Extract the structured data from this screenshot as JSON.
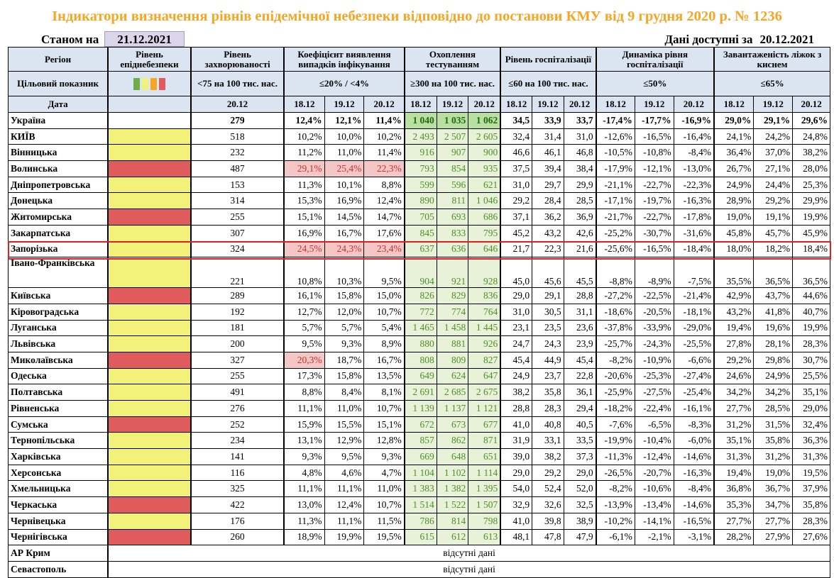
{
  "title": "Індикатори визначення рівнів епідемічної небезпеки відповідно до постанови КМУ від 9 грудня 2020 р. № 1236",
  "state_label": "Станом на",
  "state_date": "21.12.2021",
  "avail_label": "Дані доступні за",
  "avail_date": "20.12.2021",
  "colors": {
    "yellow": "#f2f27a",
    "red": "#e05c5c",
    "title": "#f5a623",
    "highlight": "#e02020"
  },
  "legend_colors": [
    "#70ad47",
    "#f2f27a",
    "#f5a623",
    "#e05c5c"
  ],
  "headers": {
    "region": "Регіон",
    "epidemic_level": "Рівень епіднебезпеки",
    "incidence": "Рівень захворюваності",
    "detection": "Коефіцієнт виявлення випадків інфікування",
    "testing": "Охоплення тестуванням",
    "hospitalization": "Рівень госпіталізації",
    "hosp_dynamics": "Динаміка рівня госпіталізації",
    "oxygen_beds": "Завантаженість ліжок з киснем"
  },
  "targets": {
    "label": "Цільовий показник",
    "incidence": "<75 на 100 тис. нас.",
    "detection": "≤20% / <4%",
    "testing": "≥300 на 100 тис. нас.",
    "hospitalization": "≤60 на 100 тис. нас.",
    "hosp_dynamics": "≤50%",
    "oxygen_beds": "≤65%"
  },
  "date_row": {
    "label": "Дата",
    "incidence": "20.12",
    "dates": [
      "18.12",
      "19.12",
      "20.12"
    ]
  },
  "rows": [
    {
      "region": "Україна",
      "level": "",
      "incidence": "279",
      "detection": [
        "12,4%",
        "12,1%",
        "11,4%"
      ],
      "testing": [
        "1 040",
        "1 035",
        "1 062"
      ],
      "hosp": [
        "34,5",
        "33,9",
        "33,7"
      ],
      "dyn": [
        "-17,4%",
        "-17,7%",
        "-16,9%"
      ],
      "beds": [
        "29,0%",
        "29,1%",
        "29,6%"
      ]
    },
    {
      "region": "КИЇВ",
      "level": "yellow",
      "incidence": "518",
      "detection": [
        "10,2%",
        "10,0%",
        "10,2%"
      ],
      "testing": [
        "2 493",
        "2 507",
        "2 605"
      ],
      "hosp": [
        "32,4",
        "31,4",
        "31,0"
      ],
      "dyn": [
        "-12,6%",
        "-16,5%",
        "-16,4%"
      ],
      "beds": [
        "24,1%",
        "24,2%",
        "24,8%"
      ]
    },
    {
      "region": "Вінницька",
      "level": "yellow",
      "incidence": "232",
      "detection": [
        "11,2%",
        "11,0%",
        "11,4%"
      ],
      "testing": [
        "916",
        "907",
        "900"
      ],
      "hosp": [
        "46,6",
        "46,1",
        "46,8"
      ],
      "dyn": [
        "-10,5%",
        "-10,8%",
        "-8,4%"
      ],
      "beds": [
        "36,4%",
        "37,0%",
        "38,2%"
      ]
    },
    {
      "region": "Волинська",
      "level": "red",
      "incidence": "487",
      "detection": [
        "29,1%",
        "25,4%",
        "22,3%"
      ],
      "pink": [
        true,
        true,
        true
      ],
      "testing": [
        "793",
        "854",
        "935"
      ],
      "hosp": [
        "37,5",
        "39,4",
        "38,4"
      ],
      "dyn": [
        "-17,9%",
        "-12,1%",
        "-13,0%"
      ],
      "beds": [
        "26,7%",
        "27,1%",
        "28,0%"
      ]
    },
    {
      "region": "Дніпропетровська",
      "level": "yellow",
      "incidence": "153",
      "detection": [
        "11,3%",
        "10,1%",
        "8,8%"
      ],
      "testing": [
        "599",
        "596",
        "621"
      ],
      "hosp": [
        "31,0",
        "29,7",
        "29,9"
      ],
      "dyn": [
        "-21,1%",
        "-22,7%",
        "-22,3%"
      ],
      "beds": [
        "24,9%",
        "24,4%",
        "25,3%"
      ]
    },
    {
      "region": "Донецька",
      "level": "yellow",
      "incidence": "314",
      "detection": [
        "15,3%",
        "16,9%",
        "12,4%"
      ],
      "testing": [
        "890",
        "811",
        "1 046"
      ],
      "hosp": [
        "29,2",
        "28,4",
        "28,5"
      ],
      "dyn": [
        "-17,1%",
        "-19,7%",
        "-16,3%"
      ],
      "beds": [
        "28,9%",
        "29,2%",
        "29,9%"
      ]
    },
    {
      "region": "Житомирська",
      "level": "red",
      "incidence": "255",
      "detection": [
        "15,1%",
        "14,5%",
        "14,7%"
      ],
      "testing": [
        "705",
        "693",
        "686"
      ],
      "hosp": [
        "37,1",
        "36,2",
        "36,9"
      ],
      "dyn": [
        "-21,7%",
        "-22,7%",
        "-17,8%"
      ],
      "beds": [
        "19,0%",
        "19,1%",
        "19,9%"
      ]
    },
    {
      "region": "Закарпатська",
      "level": "yellow",
      "incidence": "307",
      "detection": [
        "16,9%",
        "16,7%",
        "17,6%"
      ],
      "testing": [
        "845",
        "833",
        "795"
      ],
      "hosp": [
        "45,2",
        "43,2",
        "42,6"
      ],
      "dyn": [
        "-25,2%",
        "-30,7%",
        "-31,6%"
      ],
      "beds": [
        "45,8%",
        "45,7%",
        "45,9%"
      ]
    },
    {
      "region": "Запорізька",
      "level": "yellow",
      "incidence": "324",
      "detection": [
        "24,5%",
        "24,3%",
        "23,4%"
      ],
      "pink": [
        true,
        true,
        true
      ],
      "testing": [
        "637",
        "636",
        "646"
      ],
      "hosp": [
        "21,7",
        "22,3",
        "21,6"
      ],
      "dyn": [
        "-25,6%",
        "-16,5%",
        "-18,4%"
      ],
      "beds": [
        "18,0%",
        "18,2%",
        "18,4%"
      ]
    },
    {
      "region": "Івано-Франківська",
      "level": "yellow",
      "incidence": "221",
      "detection": [
        "10,8%",
        "10,3%",
        "9,5%"
      ],
      "testing": [
        "904",
        "921",
        "928"
      ],
      "hosp": [
        "45,0",
        "45,6",
        "45,5"
      ],
      "dyn": [
        "-8,8%",
        "-8,9%",
        "-7,5%"
      ],
      "beds": [
        "35,5%",
        "36,5%",
        "36,5%"
      ]
    },
    {
      "region": "Київська",
      "level": "red",
      "incidence": "289",
      "detection": [
        "16,1%",
        "15,8%",
        "15,0%"
      ],
      "testing": [
        "826",
        "829",
        "836"
      ],
      "hosp": [
        "29,0",
        "29,1",
        "28,8"
      ],
      "dyn": [
        "-27,2%",
        "-22,5%",
        "-21,4%"
      ],
      "beds": [
        "42,9%",
        "43,7%",
        "44,6%"
      ]
    },
    {
      "region": "Кіровоградська",
      "level": "yellow",
      "incidence": "192",
      "detection": [
        "12,7%",
        "12,0%",
        "10,7%"
      ],
      "testing": [
        "772",
        "774",
        "764"
      ],
      "hosp": [
        "31,0",
        "30,5",
        "31,1"
      ],
      "dyn": [
        "-18,6%",
        "-20,5%",
        "-18,1%"
      ],
      "beds": [
        "43,2%",
        "41,8%",
        "40,7%"
      ]
    },
    {
      "region": "Луганська",
      "level": "yellow",
      "incidence": "181",
      "detection": [
        "5,7%",
        "5,7%",
        "5,4%"
      ],
      "testing": [
        "1 465",
        "1 458",
        "1 445"
      ],
      "hosp": [
        "23,1",
        "23,5",
        "23,6"
      ],
      "dyn": [
        "-37,8%",
        "-33,9%",
        "-29,0%"
      ],
      "beds": [
        "19,4%",
        "19,6%",
        "19,9%"
      ]
    },
    {
      "region": "Львівська",
      "level": "yellow",
      "incidence": "200",
      "detection": [
        "9,5%",
        "9,3%",
        "8,9%"
      ],
      "testing": [
        "880",
        "881",
        "926"
      ],
      "hosp": [
        "24,7",
        "24,3",
        "23,9"
      ],
      "dyn": [
        "-25,7%",
        "-24,3%",
        "-25,5%"
      ],
      "beds": [
        "27,8%",
        "28,1%",
        "28,3%"
      ]
    },
    {
      "region": "Миколаївська",
      "level": "red",
      "incidence": "327",
      "detection": [
        "20,3%",
        "18,7%",
        "16,7%"
      ],
      "pink": [
        true,
        false,
        false
      ],
      "testing": [
        "808",
        "809",
        "827"
      ],
      "hosp": [
        "45,4",
        "44,9",
        "45,4"
      ],
      "dyn": [
        "-8,2%",
        "-10,9%",
        "-6,6%"
      ],
      "beds": [
        "29,2%",
        "29,8%",
        "30,7%"
      ]
    },
    {
      "region": "Одеська",
      "level": "yellow",
      "incidence": "255",
      "detection": [
        "17,3%",
        "15,8%",
        "13,5%"
      ],
      "testing": [
        "649",
        "624",
        "647"
      ],
      "hosp": [
        "24,9",
        "23,7",
        "22,8"
      ],
      "dyn": [
        "-20,6%",
        "-25,3%",
        "-27,4%"
      ],
      "beds": [
        "24,6%",
        "24,9%",
        "25,5%"
      ]
    },
    {
      "region": "Полтавська",
      "level": "yellow",
      "incidence": "491",
      "detection": [
        "8,8%",
        "8,4%",
        "8,1%"
      ],
      "testing": [
        "2 691",
        "2 685",
        "2 675"
      ],
      "hosp": [
        "38,2",
        "35,8",
        "36,1"
      ],
      "dyn": [
        "-25,9%",
        "-27,5%",
        "-25,4%"
      ],
      "beds": [
        "34,2%",
        "34,2%",
        "35,1%"
      ]
    },
    {
      "region": "Рівненська",
      "level": "yellow",
      "incidence": "276",
      "detection": [
        "11,1%",
        "11,0%",
        "10,7%"
      ],
      "testing": [
        "1 139",
        "1 137",
        "1 121"
      ],
      "hosp": [
        "28,8",
        "28,3",
        "29,4"
      ],
      "dyn": [
        "-18,2%",
        "-22,4%",
        "-16,1%"
      ],
      "beds": [
        "27,7%",
        "28,5%",
        "29,0%"
      ]
    },
    {
      "region": "Сумська",
      "level": "red",
      "incidence": "252",
      "detection": [
        "15,9%",
        "15,5%",
        "15,1%"
      ],
      "testing": [
        "672",
        "673",
        "677"
      ],
      "hosp": [
        "41,0",
        "40,8",
        "40,5"
      ],
      "dyn": [
        "-7,6%",
        "-6,5%",
        "-8,3%"
      ],
      "beds": [
        "31,2%",
        "31,5%",
        "32,4%"
      ]
    },
    {
      "region": "Тернопільська",
      "level": "yellow",
      "incidence": "234",
      "detection": [
        "13,1%",
        "12,9%",
        "12,8%"
      ],
      "testing": [
        "857",
        "862",
        "871"
      ],
      "hosp": [
        "31,9",
        "33,1",
        "33,5"
      ],
      "dyn": [
        "-19,9%",
        "-10,4%",
        "-6,0%"
      ],
      "beds": [
        "35,1%",
        "35,8%",
        "36,3%"
      ]
    },
    {
      "region": "Харківська",
      "level": "yellow",
      "incidence": "141",
      "detection": [
        "9,3%",
        "9,5%",
        "9,3%"
      ],
      "testing": [
        "669",
        "648",
        "651"
      ],
      "hosp": [
        "39,0",
        "38,2",
        "37,3"
      ],
      "dyn": [
        "-11,3%",
        "-12,4%",
        "-14,6%"
      ],
      "beds": [
        "31,3%",
        "31,2%",
        "31,3%"
      ]
    },
    {
      "region": "Херсонська",
      "level": "yellow",
      "incidence": "116",
      "detection": [
        "4,8%",
        "4,6%",
        "4,7%"
      ],
      "testing": [
        "1 104",
        "1 102",
        "1 114"
      ],
      "hosp": [
        "29,0",
        "29,2",
        "29,0"
      ],
      "dyn": [
        "-26,5%",
        "-20,7%",
        "-16,3%"
      ],
      "beds": [
        "19,4%",
        "19,0%",
        "19,5%"
      ]
    },
    {
      "region": "Хмельницька",
      "level": "yellow",
      "incidence": "325",
      "detection": [
        "11,1%",
        "11,1%",
        "11,0%"
      ],
      "testing": [
        "1 383",
        "1 382",
        "1 395"
      ],
      "hosp": [
        "54,0",
        "52,4",
        "52,0"
      ],
      "dyn": [
        "-8,2%",
        "-10,6%",
        "-8,4%"
      ],
      "beds": [
        "36,8%",
        "36,7%",
        "37,9%"
      ]
    },
    {
      "region": "Черкаська",
      "level": "red",
      "incidence": "422",
      "detection": [
        "13,0%",
        "12,4%",
        "10,7%"
      ],
      "testing": [
        "1 514",
        "1 522",
        "1 507"
      ],
      "hosp": [
        "32,9",
        "32,6",
        "32,5"
      ],
      "dyn": [
        "-13,9%",
        "-13,4%",
        "-14,6%"
      ],
      "beds": [
        "35,3%",
        "34,7%",
        "35,8%"
      ]
    },
    {
      "region": "Чернівецька",
      "level": "yellow",
      "incidence": "176",
      "detection": [
        "11,3%",
        "11,1%",
        "11,5%"
      ],
      "testing": [
        "786",
        "814",
        "798"
      ],
      "hosp": [
        "41,0",
        "39,8",
        "38,9"
      ],
      "dyn": [
        "-10,2%",
        "-14,1%",
        "-16,5%"
      ],
      "beds": [
        "27,7%",
        "27,7%",
        "28,3%"
      ]
    },
    {
      "region": "Чернігівська",
      "level": "red",
      "incidence": "260",
      "detection": [
        "18,9%",
        "19,9%",
        "19,5%"
      ],
      "testing": [
        "615",
        "612",
        "613"
      ],
      "hosp": [
        "48,1",
        "47,8",
        "47,9"
      ],
      "dyn": [
        "-6,1%",
        "-2,1%",
        "-3,1%"
      ],
      "beds": [
        "28,2%",
        "27,9%",
        "27,6%"
      ]
    }
  ],
  "missing_rows": [
    {
      "region": "АР Крим",
      "text": "відсутні дані"
    },
    {
      "region": "Севастополь",
      "text": "відсутні дані"
    }
  ]
}
